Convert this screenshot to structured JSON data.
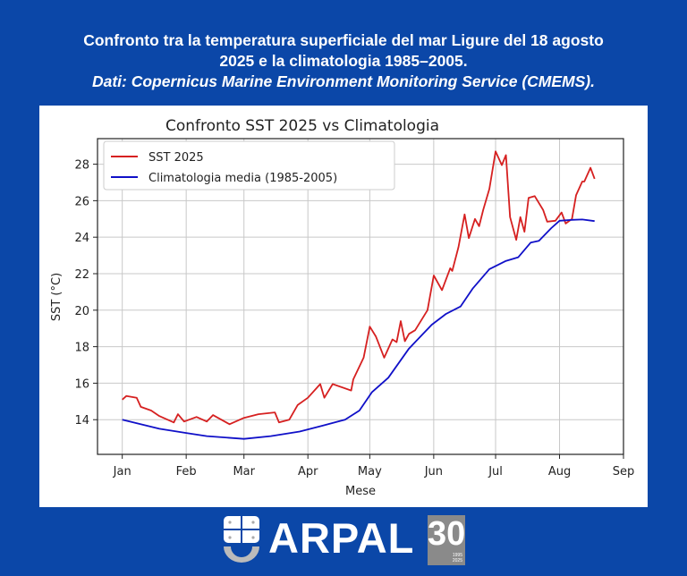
{
  "header": {
    "title_line1": "Confronto tra la temperatura superficiale del mar Ligure del 18 agosto",
    "title_line2": "2025 e la climatologia 1985–2005.",
    "source": "Dati: Copernicus Marine Environment Monitoring Service (CMEMS)."
  },
  "logo": {
    "text": "ARPAL",
    "badge_number": "30",
    "badge_years": [
      "1995",
      "2025"
    ]
  },
  "colors": {
    "background": "#0b47a8",
    "sst": "#d62020",
    "climatology": "#1010c8"
  },
  "chart_data": {
    "type": "line",
    "title": "Confronto SST 2025 vs Climatologia",
    "xlabel": "Mese",
    "ylabel": "SST (°C)",
    "x_ticks": [
      "Jan",
      "Feb",
      "Mar",
      "Apr",
      "May",
      "Jun",
      "Jul",
      "Aug",
      "Sep"
    ],
    "x_tick_dates": [
      "2025-01-01",
      "2025-02-01",
      "2025-03-01",
      "2025-04-01",
      "2025-05-01",
      "2025-06-01",
      "2025-07-01",
      "2025-08-01",
      "2025-09-01"
    ],
    "y_ticks": [
      14,
      16,
      18,
      20,
      22,
      24,
      26,
      28
    ],
    "xlim": [
      "2024-12-20",
      "2025-09-01"
    ],
    "ylim": [
      12.1,
      29.4
    ],
    "grid": true,
    "legend_position": "upper-left",
    "series": [
      {
        "name": "SST 2025",
        "color": "#d62020",
        "points": [
          [
            "2025-01-01",
            15.1
          ],
          [
            "2025-01-03",
            15.3
          ],
          [
            "2025-01-08",
            15.2
          ],
          [
            "2025-01-10",
            14.7
          ],
          [
            "2025-01-15",
            14.5
          ],
          [
            "2025-01-19",
            14.2
          ],
          [
            "2025-01-26",
            13.85
          ],
          [
            "2025-01-28",
            14.3
          ],
          [
            "2025-01-31",
            13.9
          ],
          [
            "2025-02-06",
            14.15
          ],
          [
            "2025-02-11",
            13.9
          ],
          [
            "2025-02-14",
            14.25
          ],
          [
            "2025-02-22",
            13.75
          ],
          [
            "2025-03-01",
            14.1
          ],
          [
            "2025-03-08",
            14.3
          ],
          [
            "2025-03-16",
            14.4
          ],
          [
            "2025-03-18",
            13.85
          ],
          [
            "2025-03-23",
            14.0
          ],
          [
            "2025-03-27",
            14.8
          ],
          [
            "2025-04-01",
            15.2
          ],
          [
            "2025-04-07",
            15.95
          ],
          [
            "2025-04-09",
            15.2
          ],
          [
            "2025-04-13",
            15.95
          ],
          [
            "2025-04-22",
            15.6
          ],
          [
            "2025-04-23",
            16.2
          ],
          [
            "2025-04-28",
            17.4
          ],
          [
            "2025-05-01",
            19.1
          ],
          [
            "2025-05-04",
            18.55
          ],
          [
            "2025-05-08",
            17.4
          ],
          [
            "2025-05-12",
            18.4
          ],
          [
            "2025-05-14",
            18.25
          ],
          [
            "2025-05-16",
            19.4
          ],
          [
            "2025-05-18",
            18.3
          ],
          [
            "2025-05-20",
            18.7
          ],
          [
            "2025-05-23",
            18.9
          ],
          [
            "2025-05-29",
            20.0
          ],
          [
            "2025-06-01",
            21.9
          ],
          [
            "2025-06-05",
            21.1
          ],
          [
            "2025-06-09",
            22.3
          ],
          [
            "2025-06-10",
            22.15
          ],
          [
            "2025-06-13",
            23.45
          ],
          [
            "2025-06-16",
            25.25
          ],
          [
            "2025-06-18",
            23.95
          ],
          [
            "2025-06-21",
            25.0
          ],
          [
            "2025-06-23",
            24.6
          ],
          [
            "2025-06-25",
            25.5
          ],
          [
            "2025-06-28",
            26.65
          ],
          [
            "2025-07-01",
            28.7
          ],
          [
            "2025-07-04",
            27.95
          ],
          [
            "2025-07-06",
            28.5
          ],
          [
            "2025-07-08",
            25.1
          ],
          [
            "2025-07-11",
            23.85
          ],
          [
            "2025-07-13",
            25.1
          ],
          [
            "2025-07-15",
            24.3
          ],
          [
            "2025-07-17",
            26.15
          ],
          [
            "2025-07-20",
            26.25
          ],
          [
            "2025-07-24",
            25.5
          ],
          [
            "2025-07-26",
            24.85
          ],
          [
            "2025-07-30",
            24.9
          ],
          [
            "2025-08-02",
            25.35
          ],
          [
            "2025-08-04",
            24.75
          ],
          [
            "2025-08-07",
            25.0
          ],
          [
            "2025-08-09",
            26.3
          ],
          [
            "2025-08-12",
            27.05
          ],
          [
            "2025-08-13",
            27.05
          ],
          [
            "2025-08-16",
            27.8
          ],
          [
            "2025-08-18",
            27.2
          ]
        ]
      },
      {
        "name": "Climatologia media (1985-2005)",
        "color": "#1010c8",
        "points": [
          [
            "2025-01-01",
            14.0
          ],
          [
            "2025-01-19",
            13.5
          ],
          [
            "2025-02-01",
            13.27
          ],
          [
            "2025-02-11",
            13.1
          ],
          [
            "2025-03-01",
            12.95
          ],
          [
            "2025-03-14",
            13.1
          ],
          [
            "2025-03-28",
            13.35
          ],
          [
            "2025-04-08",
            13.67
          ],
          [
            "2025-04-19",
            14.0
          ],
          [
            "2025-04-26",
            14.5
          ],
          [
            "2025-05-02",
            15.5
          ],
          [
            "2025-05-10",
            16.3
          ],
          [
            "2025-05-20",
            17.9
          ],
          [
            "2025-05-31",
            19.2
          ],
          [
            "2025-06-07",
            19.8
          ],
          [
            "2025-06-14",
            20.2
          ],
          [
            "2025-06-20",
            21.2
          ],
          [
            "2025-06-28",
            22.25
          ],
          [
            "2025-07-06",
            22.7
          ],
          [
            "2025-07-12",
            22.9
          ],
          [
            "2025-07-18",
            23.7
          ],
          [
            "2025-07-22",
            23.8
          ],
          [
            "2025-07-28",
            24.5
          ],
          [
            "2025-08-01",
            24.9
          ],
          [
            "2025-08-07",
            24.95
          ],
          [
            "2025-08-12",
            24.97
          ],
          [
            "2025-08-18",
            24.88
          ]
        ]
      }
    ]
  }
}
